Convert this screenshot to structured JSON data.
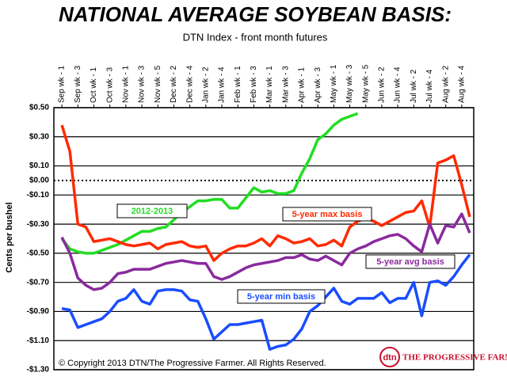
{
  "chart_data": {
    "type": "line",
    "title": "NATIONAL AVERAGE SOYBEAN BASIS:",
    "subtitle": "DTN Index - front month futures",
    "y_label": "Cents per bushel",
    "copyright": "© Copyright 2013 DTN/The Progressive Farmer. All Rights Reserved.",
    "logo": "dtn",
    "logo_text": "THE PROGRESSIVE FARMER",
    "categories": [
      "Sep wk - 1",
      null,
      "Sep wk - 3",
      null,
      "Oct wk - 1",
      null,
      "Oct wk - 3",
      null,
      "Nov wk - 1",
      null,
      "Nov wk - 3",
      null,
      "Nov wk - 5",
      null,
      "Dec wk - 2",
      null,
      "Dec wk - 4",
      null,
      "Jan wk - 2",
      null,
      "Jan wk - 4",
      null,
      "Feb wk - 1",
      null,
      "Feb wk - 3",
      null,
      "Mar wk - 1",
      null,
      "Mar wk - 3",
      null,
      "Apr wk - 1",
      null,
      "Apr wk - 3",
      null,
      "May wk - 1",
      null,
      "May wk - 3",
      null,
      "May wk - 5",
      null,
      "Jun wk - 2",
      null,
      "Jun wk - 4",
      null,
      "Jul wk - 2",
      null,
      "Jul wk - 4",
      null,
      "Aug wk - 2",
      null,
      "Aug wk - 4",
      null
    ],
    "series": [
      {
        "name": "2012-2013",
        "color": "#22dd22",
        "values": [
          -0.4,
          -0.47,
          -0.49,
          -0.5,
          -0.5,
          -0.48,
          -0.46,
          -0.44,
          -0.41,
          -0.38,
          -0.35,
          -0.35,
          -0.33,
          -0.32,
          -0.27,
          -0.22,
          -0.18,
          -0.14,
          -0.14,
          -0.13,
          -0.13,
          -0.19,
          -0.19,
          -0.12,
          -0.05,
          -0.08,
          -0.07,
          -0.09,
          -0.09,
          -0.07,
          0.05,
          0.15,
          0.28,
          0.32,
          0.38,
          0.42,
          0.44,
          0.46,
          null,
          null,
          null,
          null,
          null,
          null,
          null,
          null,
          null,
          null,
          null,
          null,
          null,
          null
        ]
      },
      {
        "name": "5-year max basis",
        "color": "#ff2a00",
        "values": [
          0.38,
          0.2,
          -0.3,
          -0.32,
          -0.42,
          -0.41,
          -0.4,
          -0.42,
          -0.44,
          -0.45,
          -0.44,
          -0.43,
          -0.47,
          -0.44,
          -0.43,
          -0.42,
          -0.45,
          -0.46,
          -0.45,
          -0.55,
          -0.5,
          -0.47,
          -0.45,
          -0.45,
          -0.43,
          -0.4,
          -0.45,
          -0.38,
          -0.4,
          -0.43,
          -0.42,
          -0.4,
          -0.45,
          -0.44,
          -0.41,
          -0.45,
          -0.32,
          -0.28,
          -0.26,
          -0.28,
          -0.31,
          -0.28,
          -0.25,
          -0.22,
          -0.21,
          -0.14,
          -0.32,
          0.12,
          0.14,
          0.17,
          -0.03,
          -0.25
        ]
      },
      {
        "name": "5-year avg basis",
        "color": "#8a2a9e",
        "values": [
          -0.39,
          -0.5,
          -0.67,
          -0.72,
          -0.75,
          -0.74,
          -0.7,
          -0.64,
          -0.63,
          -0.61,
          -0.61,
          -0.61,
          -0.59,
          -0.57,
          -0.56,
          -0.55,
          -0.56,
          -0.57,
          -0.57,
          -0.66,
          -0.68,
          -0.66,
          -0.63,
          -0.6,
          -0.58,
          -0.57,
          -0.56,
          -0.55,
          -0.53,
          -0.53,
          -0.51,
          -0.54,
          -0.55,
          -0.52,
          -0.55,
          -0.58,
          -0.5,
          -0.47,
          -0.45,
          -0.42,
          -0.4,
          -0.38,
          -0.37,
          -0.4,
          -0.45,
          -0.49,
          -0.3,
          -0.43,
          -0.31,
          -0.32,
          -0.23,
          -0.36
        ]
      },
      {
        "name": "5-year min basis",
        "color": "#1a4dff",
        "values": [
          -0.88,
          -0.89,
          -1.01,
          -0.99,
          -0.97,
          -0.95,
          -0.9,
          -0.83,
          -0.81,
          -0.75,
          -0.83,
          -0.85,
          -0.76,
          -0.75,
          -0.75,
          -0.76,
          -0.82,
          -0.83,
          -0.95,
          -1.09,
          -1.04,
          -0.99,
          -0.99,
          -0.98,
          -0.97,
          -0.96,
          -1.16,
          -1.14,
          -1.13,
          -1.09,
          -1.02,
          -0.9,
          -0.86,
          -0.8,
          -0.74,
          -0.83,
          -0.85,
          -0.81,
          -0.81,
          -0.81,
          -0.77,
          -0.84,
          -0.81,
          -0.81,
          -0.7,
          -0.93,
          -0.7,
          -0.69,
          -0.72,
          -0.66,
          -0.58,
          -0.51
        ]
      }
    ],
    "ylim": [
      -1.3,
      0.5
    ],
    "yticks": [
      {
        "value": 0.5,
        "label": "$0.50"
      },
      {
        "value": 0.3,
        "label": "$0.30"
      },
      {
        "value": 0.1,
        "label": "$0.10"
      },
      {
        "value": 0,
        "label": "$0.00"
      },
      {
        "value": -0.1,
        "label": "-$0.10"
      },
      {
        "value": -0.3,
        "label": "-$0.30"
      },
      {
        "value": -0.5,
        "label": "-$0.50"
      },
      {
        "value": -0.7,
        "label": "-$0.70"
      },
      {
        "value": -0.9,
        "label": "-$0.90"
      },
      {
        "value": -1.1,
        "label": "-$1.10"
      },
      {
        "value": -1.3,
        "label": "-$1.30"
      }
    ],
    "grid": true
  }
}
